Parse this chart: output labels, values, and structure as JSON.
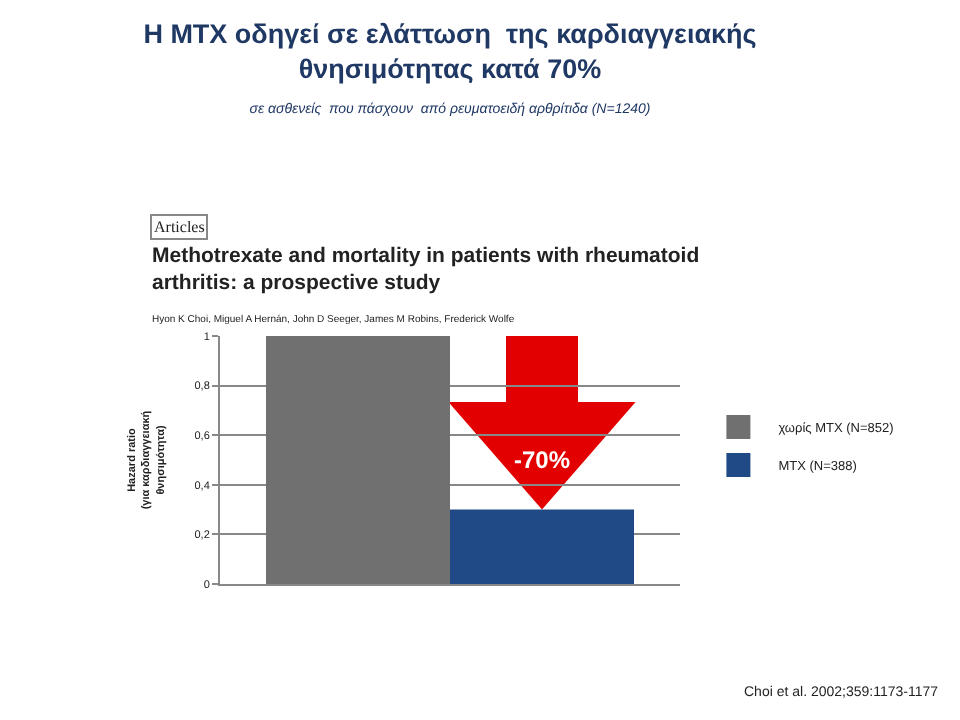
{
  "chart_data": {
    "type": "bar",
    "title": "Η MTX οδηγεί σε ελάττωση  της καρδιαγγειακής\nθνησιμότητας κατά 70%",
    "subtitle": "σε ασθενείς  που πάσχουν  από ρευματοειδή αρθρίτιδα (N=1240)",
    "ylabel": "Hazard ratio\n(για καρδιαγγειακή\nθνησιμότητα)",
    "categories": [
      null
    ],
    "series": [
      {
        "name": "χωρίς MTX (N=852)",
        "color": "#707070",
        "values": [
          1
        ]
      },
      {
        "name": "MTX (N=388)",
        "color": "#1f4a85",
        "values": [
          0.3
        ]
      }
    ],
    "ylim": [
      0,
      1
    ],
    "yticks": [
      0,
      {
        "value": 0.2,
        "label": "0,2"
      },
      {
        "value": 0.4,
        "label": "0,4"
      },
      {
        "value": 0.6,
        "label": "0,6"
      },
      {
        "value": 0.8,
        "label": "0,8"
      },
      1
    ],
    "grid": "y",
    "legend": "right",
    "annotations": [
      "Articles",
      "Methotrexate and mortality in patients with rheumatoid\narthritis: a prospective study",
      "Hyon K Choi, Miguel A Hernán, John D Seeger, James M Robins, Frederick Wolfe",
      "-70%",
      "Choi et al. 2002;359:1173-1177"
    ]
  }
}
